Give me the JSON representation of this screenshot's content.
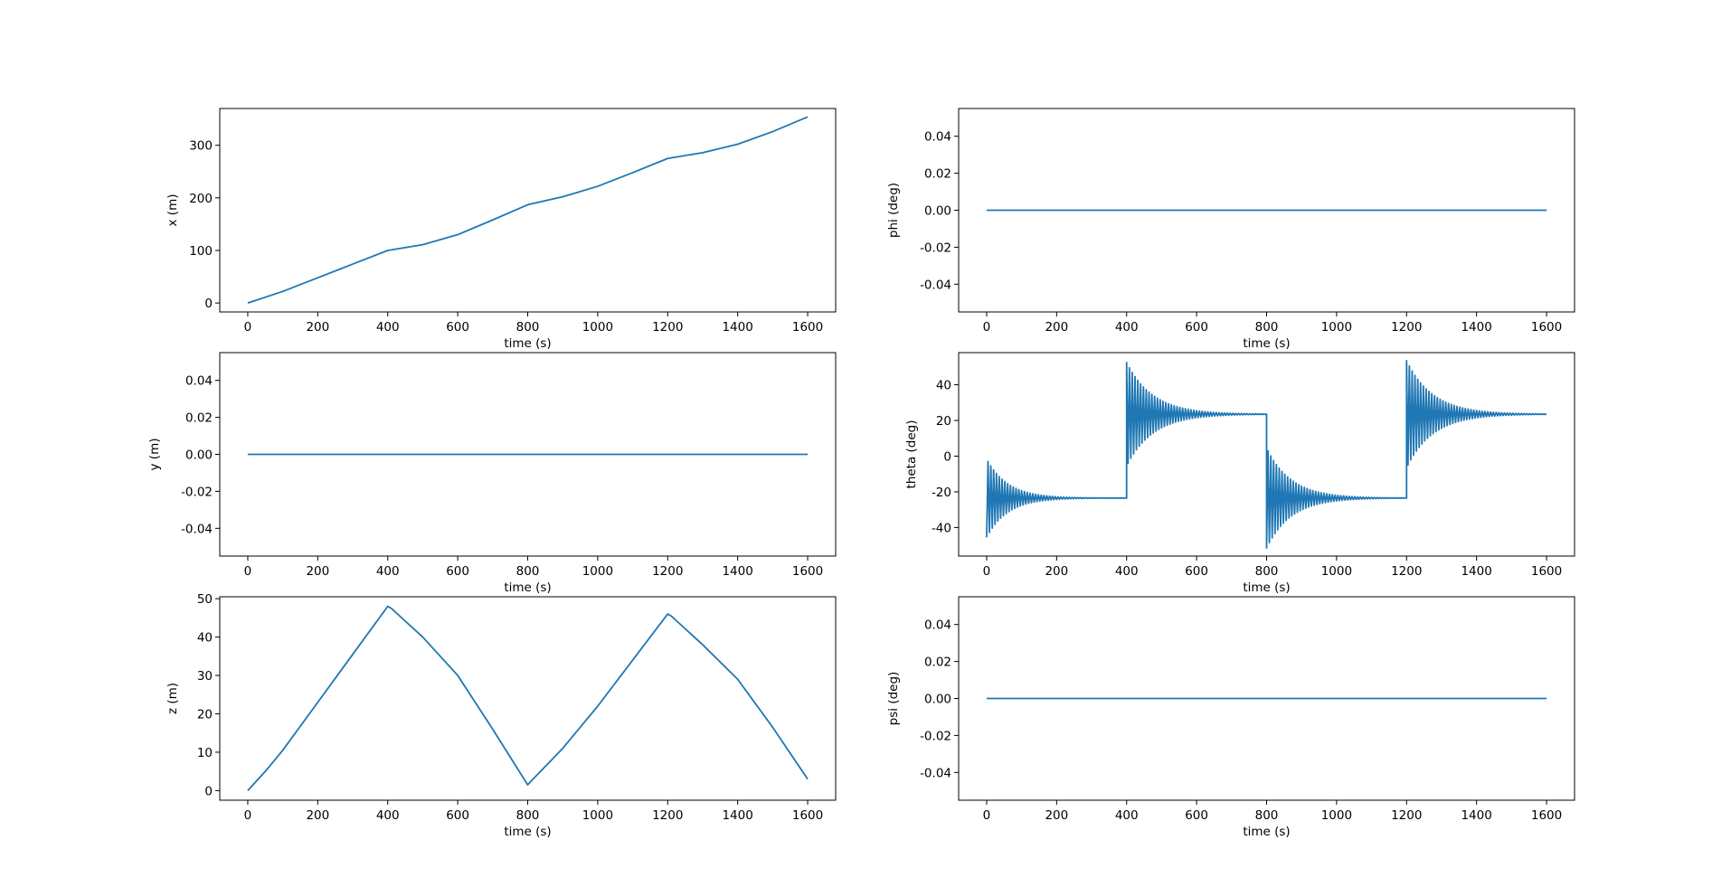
{
  "chart_data": [
    {
      "type": "line",
      "xlabel": "time (s)",
      "ylabel": "x (m)",
      "xlim": [
        -80,
        1680
      ],
      "ylim": [
        -17,
        370
      ],
      "xticks": [
        0,
        200,
        400,
        600,
        800,
        1000,
        1200,
        1400,
        1600
      ],
      "yticks": [
        0,
        100,
        200,
        300
      ],
      "series": [
        {
          "color": "#1f77b4",
          "x": [
            0,
            100,
            200,
            300,
            400,
            500,
            600,
            700,
            800,
            900,
            1000,
            1100,
            1200,
            1300,
            1400,
            1500,
            1600
          ],
          "y": [
            0,
            22,
            48,
            74,
            100,
            111,
            130,
            158,
            187,
            202,
            222,
            248,
            275,
            286,
            302,
            326,
            354
          ]
        }
      ]
    },
    {
      "type": "line",
      "xlabel": "time (s)",
      "ylabel": "phi (deg)",
      "xlim": [
        -80,
        1680
      ],
      "ylim": [
        -0.055,
        0.055
      ],
      "xticks": [
        0,
        200,
        400,
        600,
        800,
        1000,
        1200,
        1400,
        1600
      ],
      "yticks": [
        -0.04,
        -0.02,
        0.0,
        0.02,
        0.04
      ],
      "series": [
        {
          "color": "#1f77b4",
          "x": [
            0,
            1600
          ],
          "y": [
            0,
            0
          ]
        }
      ]
    },
    {
      "type": "line",
      "xlabel": "time (s)",
      "ylabel": "y (m)",
      "xlim": [
        -80,
        1680
      ],
      "ylim": [
        -0.055,
        0.055
      ],
      "xticks": [
        0,
        200,
        400,
        600,
        800,
        1000,
        1200,
        1400,
        1600
      ],
      "yticks": [
        -0.04,
        -0.02,
        0.0,
        0.02,
        0.04
      ],
      "series": [
        {
          "color": "#1f77b4",
          "x": [
            0,
            1600
          ],
          "y": [
            0,
            0
          ]
        }
      ]
    },
    {
      "type": "line",
      "xlabel": "time (s)",
      "ylabel": "theta (deg)",
      "xlim": [
        -80,
        1680
      ],
      "ylim": [
        -56,
        58
      ],
      "xticks": [
        0,
        200,
        400,
        600,
        800,
        1000,
        1200,
        1400,
        1600
      ],
      "yticks": [
        -40,
        -20,
        0,
        20,
        40
      ],
      "oscillation": {
        "period_s": 8,
        "segments": [
          {
            "start": 0,
            "end": 400,
            "level": -23.5,
            "amplitude": 22,
            "decay_s": 60
          },
          {
            "start": 400,
            "end": 800,
            "level": 23.5,
            "amplitude": 29,
            "decay_s": 75
          },
          {
            "start": 800,
            "end": 1200,
            "level": -23.5,
            "amplitude": 28,
            "decay_s": 70
          },
          {
            "start": 1200,
            "end": 1600,
            "level": 23.5,
            "amplitude": 30,
            "decay_s": 75
          }
        ]
      },
      "series": [
        {
          "color": "#1f77b4"
        }
      ]
    },
    {
      "type": "line",
      "xlabel": "time (s)",
      "ylabel": "z (m)",
      "xlim": [
        -80,
        1680
      ],
      "ylim": [
        -2.5,
        50.5
      ],
      "xticks": [
        0,
        200,
        400,
        600,
        800,
        1000,
        1200,
        1400,
        1600
      ],
      "yticks": [
        0,
        10,
        20,
        30,
        40,
        50
      ],
      "series": [
        {
          "color": "#1f77b4",
          "x": [
            0,
            50,
            100,
            200,
            300,
            400,
            410,
            500,
            600,
            700,
            800,
            810,
            900,
            1000,
            1100,
            1200,
            1210,
            1300,
            1400,
            1500,
            1600
          ],
          "y": [
            0,
            5,
            10.5,
            23,
            35.5,
            48,
            47.5,
            40,
            30,
            16,
            1.5,
            2.5,
            11,
            22,
            34,
            46,
            45.5,
            38,
            29,
            16.5,
            3
          ]
        }
      ]
    },
    {
      "type": "line",
      "xlabel": "time (s)",
      "ylabel": "psi (deg)",
      "xlim": [
        -80,
        1680
      ],
      "ylim": [
        -0.055,
        0.055
      ],
      "xticks": [
        0,
        200,
        400,
        600,
        800,
        1000,
        1200,
        1400,
        1600
      ],
      "yticks": [
        -0.04,
        -0.02,
        0.0,
        0.02,
        0.04
      ],
      "series": [
        {
          "color": "#1f77b4",
          "x": [
            0,
            1600
          ],
          "y": [
            0,
            0
          ]
        }
      ]
    }
  ]
}
